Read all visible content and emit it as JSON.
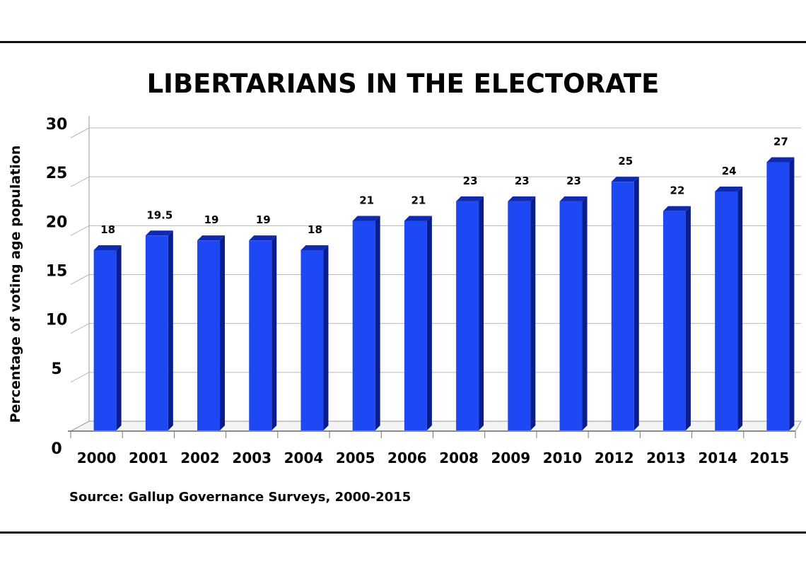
{
  "chart_data": {
    "type": "bar",
    "title": "LIBERTARIANS IN THE ELECTORATE",
    "ylabel": "Percentage of voting age population",
    "xlabel": "",
    "source": "Source: Gallup Governance Surveys, 2000-2015",
    "categories": [
      "2000",
      "2001",
      "2002",
      "2003",
      "2004",
      "2005",
      "2006",
      "2008",
      "2009",
      "2010",
      "2012",
      "2013",
      "2014",
      "2015"
    ],
    "values": [
      18,
      19.5,
      19,
      19,
      18,
      21,
      21,
      23,
      23,
      23,
      25,
      22,
      24,
      27
    ],
    "data_labels": [
      "18",
      "19.5",
      "19",
      "19",
      "18",
      "21",
      "21",
      "23",
      "23",
      "23",
      "25",
      "22",
      "24",
      "27"
    ],
    "ylim": [
      0,
      30
    ],
    "yticks": [
      "0",
      "5",
      "10",
      "15",
      "20",
      "25",
      "30"
    ],
    "grid": true,
    "colors": {
      "bar_face": "#1f48f5",
      "bar_side": "#0a1d8c",
      "bar_top": "#0d2ab0",
      "grid": "#b8b8b8"
    }
  }
}
